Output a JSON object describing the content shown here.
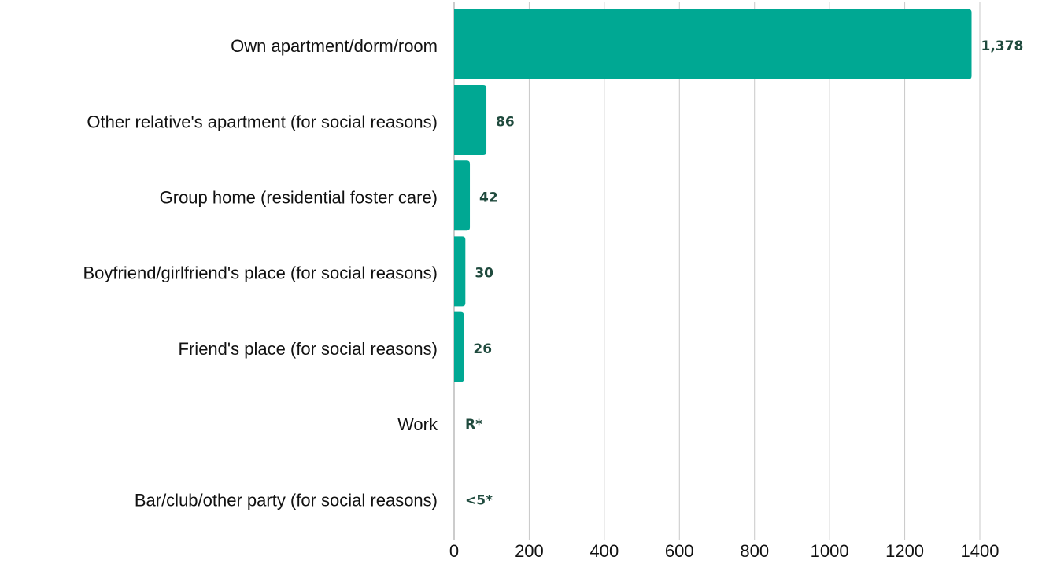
{
  "chart_data": {
    "type": "bar",
    "orientation": "horizontal",
    "categories": [
      "Own apartment/dorm/room",
      "Other relative's apartment (for social reasons)",
      "Group home (residential foster care)",
      "Boyfriend/girlfriend's place (for social reasons)",
      "Friend's place (for social reasons)",
      "Work",
      "Bar/club/other party (for social reasons)"
    ],
    "values": [
      1378,
      86,
      42,
      30,
      26,
      0,
      0
    ],
    "data_labels": [
      "1,378",
      "86",
      "42",
      "30",
      "26",
      "R*",
      "<5*"
    ],
    "xlim": [
      0,
      1400
    ],
    "x_ticks": [
      0,
      200,
      400,
      600,
      800,
      1000,
      1200,
      1400
    ],
    "x_tick_labels": [
      "0",
      "200",
      "400",
      "600",
      "800",
      "1000",
      "1200",
      "1400"
    ],
    "title": "",
    "xlabel": "",
    "ylabel": "",
    "grid": "vertical",
    "legend": "none",
    "bar_color": "#00a893",
    "label_color": "#1f4a3d"
  }
}
